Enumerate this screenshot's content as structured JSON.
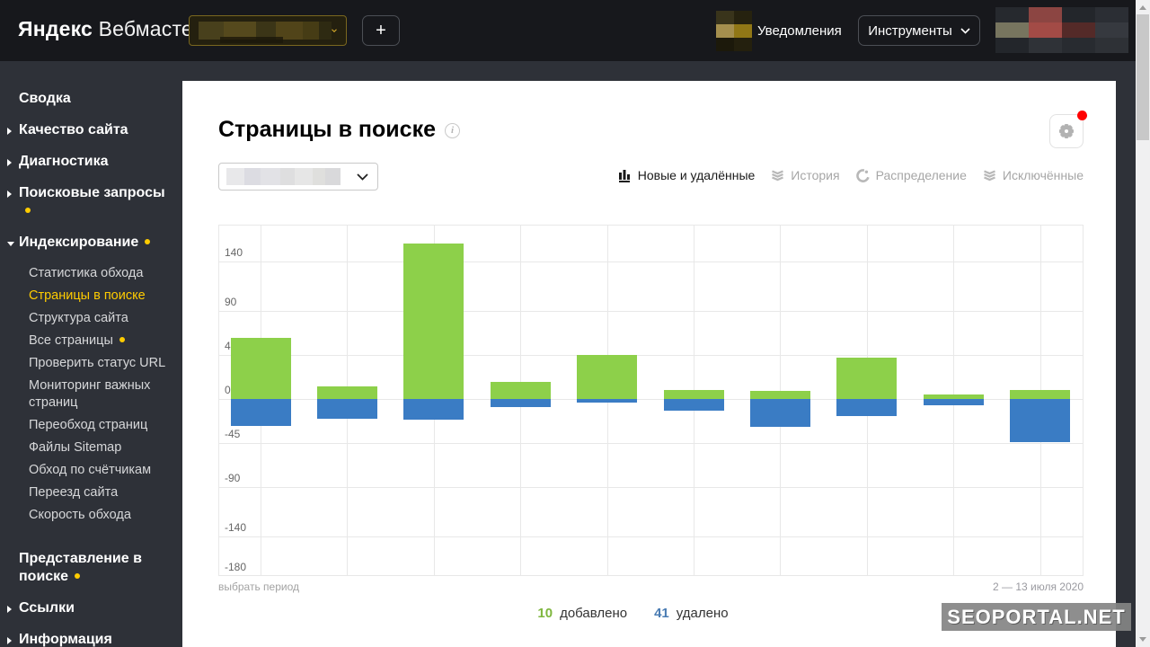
{
  "header": {
    "logo_primary": "Яндекс",
    "logo_secondary": "Вебмастер",
    "add_site_button": "+",
    "notifications_label": "Уведомления",
    "tools_button": "Инструменты"
  },
  "sidebar": {
    "items": [
      {
        "label": "Сводка",
        "type": "top"
      },
      {
        "label": "Качество сайта",
        "type": "top",
        "arrow": "right"
      },
      {
        "label": "Диагностика",
        "type": "top",
        "arrow": "right"
      },
      {
        "label": "Поисковые запросы",
        "type": "top",
        "arrow": "right",
        "dot": true
      },
      {
        "label": "Индексирование",
        "type": "top",
        "arrow": "down",
        "dot": true,
        "expanded": true
      },
      {
        "label": "Статистика обхода",
        "type": "sub"
      },
      {
        "label": "Страницы в поиске",
        "type": "sub",
        "active": true
      },
      {
        "label": "Структура сайта",
        "type": "sub"
      },
      {
        "label": "Все страницы",
        "type": "sub",
        "dot": true
      },
      {
        "label": "Проверить статус URL",
        "type": "sub"
      },
      {
        "label": "Мониторинг важных страниц",
        "type": "sub"
      },
      {
        "label": "Переобход страниц",
        "type": "sub"
      },
      {
        "label": "Файлы Sitemap",
        "type": "sub"
      },
      {
        "label": "Обход по счётчикам",
        "type": "sub"
      },
      {
        "label": "Переезд сайта",
        "type": "sub"
      },
      {
        "label": "Скорость обхода",
        "type": "sub"
      },
      {
        "label": "Представление в поиске",
        "type": "top",
        "dot": true,
        "gap": true
      },
      {
        "label": "Ссылки",
        "type": "top",
        "arrow": "right"
      },
      {
        "label": "Информация",
        "type": "top",
        "arrow": "right"
      }
    ]
  },
  "main": {
    "title": "Страницы в поиске",
    "tabs": [
      {
        "label": "Новые и удалённые",
        "icon": "bar-chart",
        "active": true
      },
      {
        "label": "История",
        "icon": "layers",
        "active": false
      },
      {
        "label": "Распределение",
        "icon": "pie",
        "active": false
      },
      {
        "label": "Исключённые",
        "icon": "layers",
        "active": false
      }
    ],
    "period_link": "выбрать период",
    "period_range": "2 — 13 июля 2020",
    "summary": {
      "added_value": "10",
      "added_label": "добавлено",
      "removed_value": "41",
      "removed_label": "удалено"
    },
    "watermark": "SEOPORTAL.NET"
  },
  "colors": {
    "added_green": "#8dd04a",
    "removed_blue": "#3a7cc4",
    "summary_green": "#7eb63e",
    "summary_blue": "#4a7cb3",
    "accent_yellow": "#ffcc00",
    "alert_red": "#ff0000"
  },
  "chart_data": {
    "type": "bar",
    "title": "Страницы в поиске — новые и удалённые",
    "period": "2 — 13 июля 2020",
    "x": [
      1,
      2,
      3,
      4,
      5,
      6,
      7,
      8,
      9,
      10
    ],
    "x_labels_visible": false,
    "series": [
      {
        "name": "добавлено",
        "color": "#8dd04a",
        "values": [
          62,
          13,
          158,
          17,
          45,
          9,
          8,
          42,
          5,
          9
        ]
      },
      {
        "name": "удалено",
        "color": "#3a7cc4",
        "values": [
          -27,
          -20,
          -21,
          -8,
          -4,
          -12,
          -28,
          -17,
          -6,
          -44
        ]
      }
    ],
    "yticks": [
      140,
      90,
      45,
      0,
      -45,
      -90,
      -140,
      -180
    ],
    "ylim": [
      -180,
      180
    ],
    "grid": true,
    "legend_position": "bottom-summary",
    "totals": {
      "added": 10,
      "removed": 41
    }
  },
  "redactions": {
    "site_selector_blocks": [
      "#48401c",
      "#55491d",
      "#3b3517",
      "#514419",
      "#463c15",
      "#2e2a12"
    ],
    "notification_blocks": [
      "#39341b",
      "#26220f",
      "#a58f4e",
      "#917716",
      "#1c190b",
      "#24200e"
    ],
    "avatar_blocks": [
      "#26292e",
      "#8c4542",
      "#23262b",
      "#2b2e34",
      "#77755f",
      "#a34b46",
      "#542a28",
      "#36393f",
      "#23262b",
      "#2f3237",
      "#282b30",
      "#2e3136"
    ],
    "chart_selector_blocks": [
      "#e8e8ea",
      "#dcdce2",
      "#e2e2e6",
      "#dededf",
      "#e6e6e6",
      "#dfdfdd",
      "#d9d9db"
    ]
  }
}
